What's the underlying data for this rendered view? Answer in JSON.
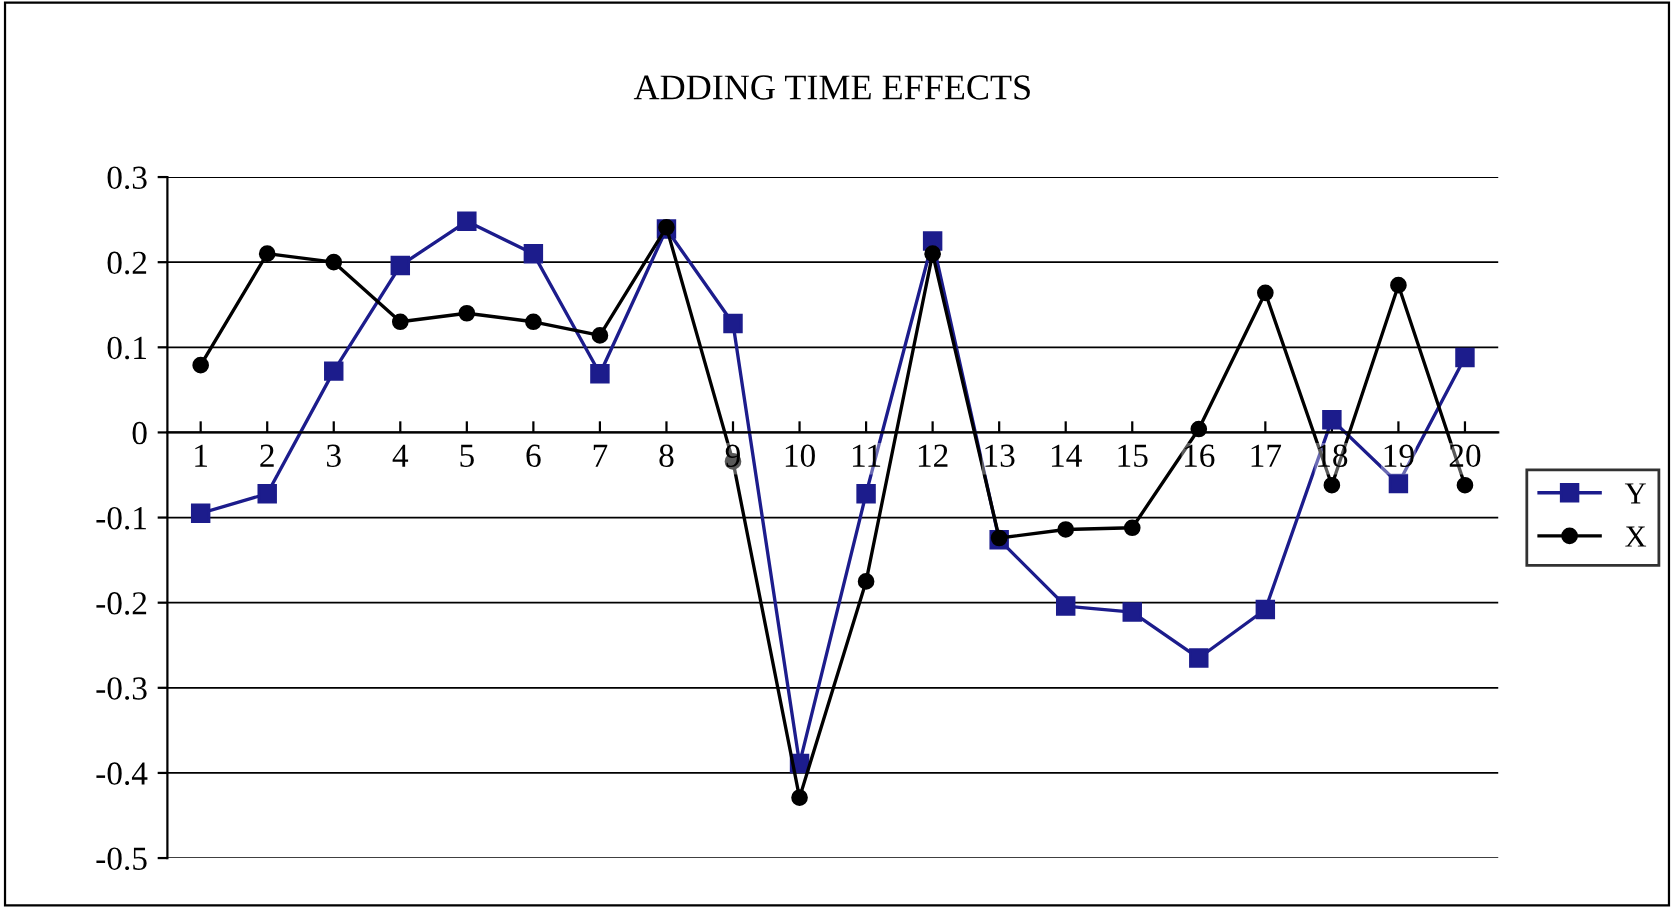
{
  "chart_data": {
    "type": "line",
    "title": "ADDING TIME EFFECTS",
    "categories": [
      "1",
      "2",
      "3",
      "4",
      "5",
      "6",
      "7",
      "8",
      "9",
      "10",
      "11",
      "12",
      "13",
      "14",
      "15",
      "16",
      "17",
      "18",
      "19",
      "20"
    ],
    "series": [
      {
        "name": "Y",
        "color": "#1c1c8c",
        "marker": "square",
        "values": [
          -0.095,
          -0.072,
          0.072,
          0.196,
          0.248,
          0.21,
          0.069,
          0.239,
          0.128,
          -0.389,
          -0.072,
          0.225,
          -0.126,
          -0.204,
          -0.211,
          -0.265,
          -0.208,
          0.015,
          -0.06,
          0.088
        ]
      },
      {
        "name": "X",
        "color": "#000000",
        "marker": "circle",
        "values": [
          0.079,
          0.21,
          0.2,
          0.13,
          0.14,
          0.13,
          0.114,
          0.241,
          -0.034,
          -0.429,
          -0.175,
          0.21,
          -0.124,
          -0.114,
          -0.112,
          0.004,
          0.164,
          -0.062,
          0.173,
          -0.062
        ]
      }
    ],
    "ylim": [
      -0.5,
      0.3
    ],
    "yticks": [
      {
        "value": -0.5,
        "label": "-0.5"
      },
      {
        "value": -0.4,
        "label": "-0.4"
      },
      {
        "value": -0.3,
        "label": "-0.3"
      },
      {
        "value": -0.2,
        "label": "-0.2"
      },
      {
        "value": -0.1,
        "label": "-0.1"
      },
      0,
      0.1,
      0.2,
      0.3
    ],
    "grid": "y",
    "legend": "right",
    "line_style": "solid"
  }
}
